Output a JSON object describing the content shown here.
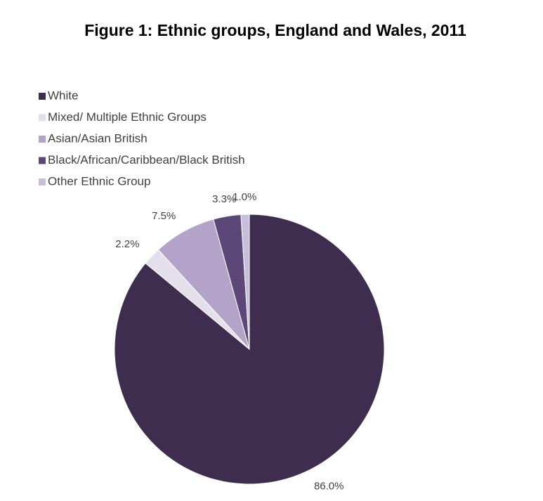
{
  "chart_data": {
    "type": "pie",
    "title": "Figure 1: Ethnic groups, England and Wales, 2011",
    "categories": [
      "White",
      "Mixed/ Multiple Ethnic Groups",
      "Asian/Asian British",
      "Black/African/Caribbean/Black British",
      "Other Ethnic Group"
    ],
    "values": [
      86.0,
      2.2,
      7.5,
      3.3,
      1.0
    ],
    "value_labels": [
      "86.0%",
      "2.2%",
      "7.5%",
      "3.3%",
      "1.0%"
    ],
    "colors": [
      "#3f2d4f",
      "#e4dfea",
      "#b3a3c9",
      "#5c4878",
      "#c9bedb"
    ],
    "legend": "top-left"
  }
}
